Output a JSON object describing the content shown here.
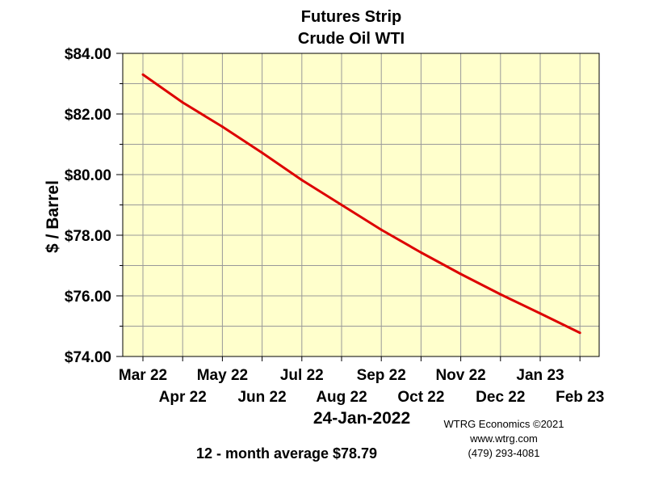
{
  "chart_data": {
    "type": "line",
    "title": "Futures Strip",
    "subtitle": "Crude Oil WTI",
    "xlabel": "",
    "ylabel": "$ / Barrel",
    "categories": [
      "Mar 22",
      "Apr 22",
      "May 22",
      "Jun 22",
      "Jul 22",
      "Aug 22",
      "Sep 22",
      "Oct 22",
      "Nov 22",
      "Dec 22",
      "Jan 23",
      "Feb 23"
    ],
    "series": [
      {
        "values": [
          83.3,
          82.38,
          81.58,
          80.72,
          79.82,
          79.0,
          78.18,
          77.43,
          76.72,
          76.05,
          75.42,
          74.78
        ]
      }
    ],
    "ylim": [
      74,
      84
    ],
    "yticks": [
      74,
      76,
      78,
      80,
      82,
      84
    ],
    "ytick_labels": [
      "$74.00",
      "$76.00",
      "$78.00",
      "$80.00",
      "$82.00",
      "$84.00"
    ],
    "grid": true,
    "legend": "none",
    "date_label": "24-Jan-2022",
    "average_text": "12 - month average $78.79",
    "colors": {
      "plot_background": "#ffffcc",
      "line": "#dd0000",
      "grid": "#999999"
    }
  },
  "credits": {
    "company": "WTRG Economics ©2021",
    "website": "www.wtrg.com",
    "phone": "(479) 293-4081"
  }
}
